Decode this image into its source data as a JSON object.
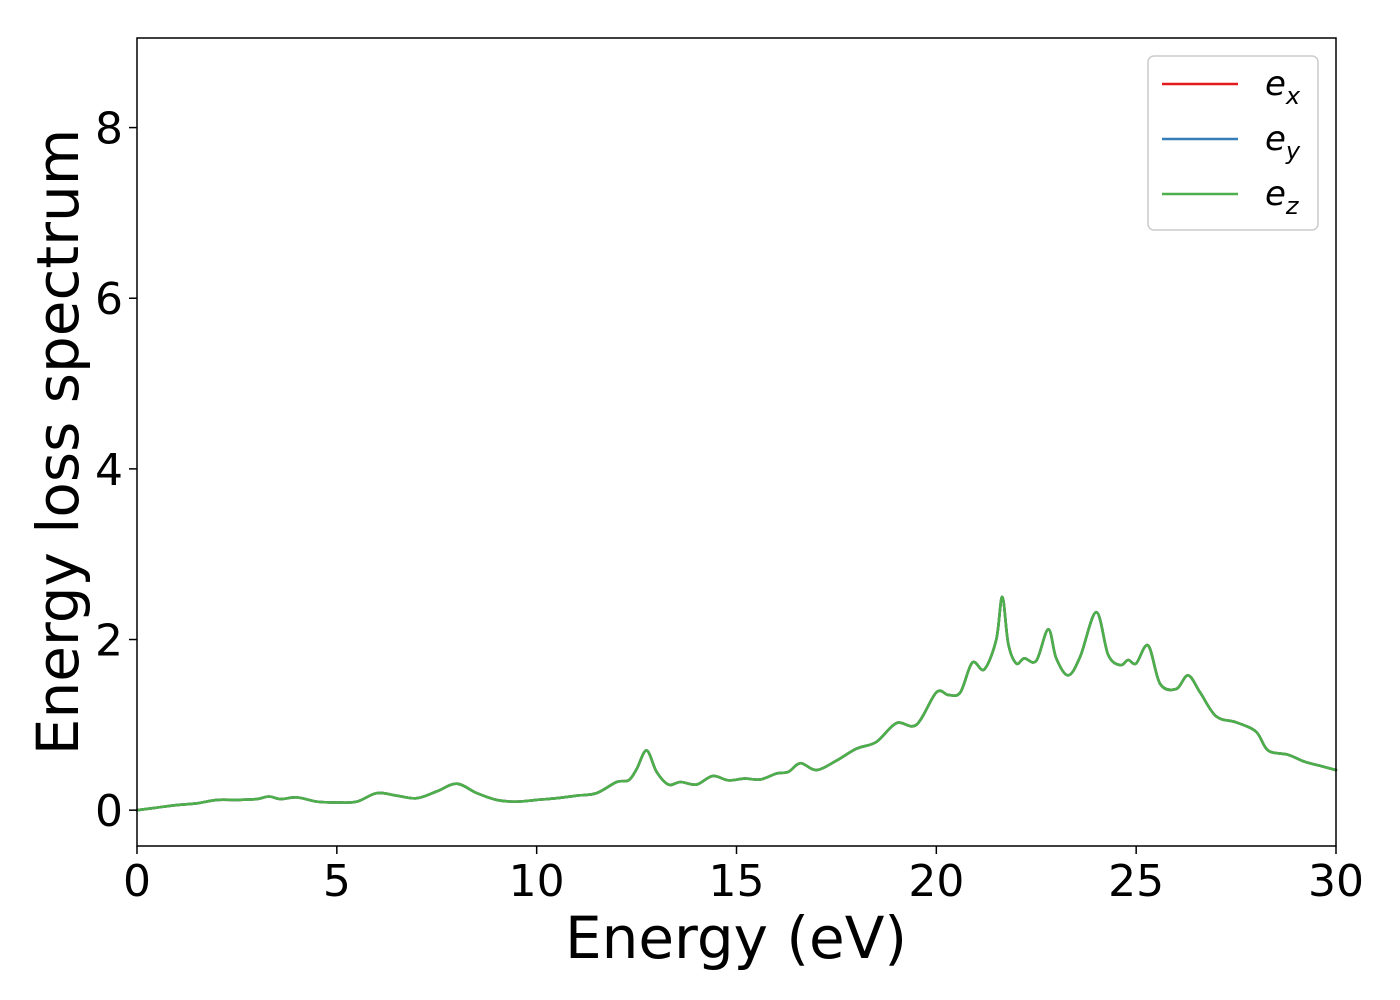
{
  "chart_data": {
    "type": "line",
    "xlabel": "Energy (eV)",
    "ylabel": "Energy loss spectrum",
    "xlim": [
      0,
      30
    ],
    "ylim": [
      -0.42,
      9.05
    ],
    "x_ticks": [
      "0",
      "5",
      "10",
      "15",
      "20",
      "25",
      "30"
    ],
    "y_ticks": [
      "0",
      "2",
      "4",
      "6",
      "8"
    ],
    "grid": false,
    "legend_position": "top-right",
    "x": [
      0,
      0.5,
      1.0,
      1.5,
      2.0,
      2.5,
      3.0,
      3.3,
      3.6,
      4.0,
      4.5,
      5.0,
      5.5,
      6.0,
      6.5,
      7.0,
      7.5,
      8.0,
      8.5,
      9.0,
      9.5,
      10.0,
      10.5,
      11.0,
      11.5,
      12.0,
      12.3,
      12.5,
      12.75,
      13.0,
      13.3,
      13.6,
      14.0,
      14.4,
      14.8,
      15.2,
      15.6,
      16.0,
      16.3,
      16.6,
      17.0,
      17.5,
      18.0,
      18.5,
      19.0,
      19.5,
      20.0,
      20.3,
      20.6,
      20.9,
      21.2,
      21.5,
      21.65,
      21.8,
      22.0,
      22.2,
      22.5,
      22.8,
      23.0,
      23.3,
      23.6,
      24.0,
      24.3,
      24.6,
      24.8,
      25.0,
      25.3,
      25.6,
      26.0,
      26.3,
      26.6,
      27.0,
      27.5,
      28.0,
      28.3,
      28.8,
      29.2,
      29.6,
      30.0
    ],
    "series": [
      {
        "name": "x",
        "label_main": "e",
        "label_sub": "x",
        "color": "#e41a1c",
        "values": [
          0.0,
          0.03,
          0.06,
          0.08,
          0.12,
          0.12,
          0.13,
          0.16,
          0.13,
          0.15,
          0.1,
          0.09,
          0.1,
          0.2,
          0.17,
          0.14,
          0.22,
          0.31,
          0.2,
          0.12,
          0.1,
          0.12,
          0.14,
          0.17,
          0.2,
          0.33,
          0.35,
          0.48,
          0.7,
          0.45,
          0.3,
          0.33,
          0.3,
          0.4,
          0.35,
          0.37,
          0.36,
          0.43,
          0.45,
          0.55,
          0.47,
          0.58,
          0.72,
          0.8,
          1.02,
          1.0,
          1.38,
          1.35,
          1.38,
          1.73,
          1.65,
          2.0,
          2.5,
          1.95,
          1.72,
          1.78,
          1.75,
          2.12,
          1.78,
          1.58,
          1.8,
          2.32,
          1.82,
          1.7,
          1.76,
          1.72,
          1.93,
          1.48,
          1.42,
          1.58,
          1.38,
          1.1,
          1.03,
          0.92,
          0.7,
          0.65,
          0.57,
          0.52,
          0.47
        ]
      },
      {
        "name": "y",
        "label_main": "e",
        "label_sub": "y",
        "color": "#377eb8",
        "values": [
          0.0,
          0.03,
          0.06,
          0.08,
          0.12,
          0.12,
          0.13,
          0.16,
          0.13,
          0.15,
          0.1,
          0.09,
          0.1,
          0.2,
          0.17,
          0.14,
          0.22,
          0.31,
          0.2,
          0.12,
          0.1,
          0.12,
          0.14,
          0.17,
          0.2,
          0.33,
          0.35,
          0.48,
          0.7,
          0.45,
          0.3,
          0.33,
          0.3,
          0.4,
          0.35,
          0.37,
          0.36,
          0.43,
          0.45,
          0.55,
          0.47,
          0.58,
          0.72,
          0.8,
          1.02,
          1.0,
          1.38,
          1.35,
          1.38,
          1.73,
          1.65,
          2.0,
          2.5,
          1.95,
          1.72,
          1.78,
          1.75,
          2.12,
          1.78,
          1.58,
          1.8,
          2.32,
          1.82,
          1.7,
          1.76,
          1.72,
          1.93,
          1.48,
          1.42,
          1.58,
          1.38,
          1.1,
          1.03,
          0.92,
          0.7,
          0.65,
          0.57,
          0.52,
          0.47
        ]
      },
      {
        "name": "z",
        "label_main": "e",
        "label_sub": "z",
        "color": "#4daf4a",
        "values": [
          0.0,
          0.03,
          0.06,
          0.08,
          0.12,
          0.12,
          0.13,
          0.16,
          0.13,
          0.15,
          0.1,
          0.09,
          0.1,
          0.2,
          0.17,
          0.14,
          0.22,
          0.31,
          0.2,
          0.12,
          0.1,
          0.12,
          0.14,
          0.17,
          0.2,
          0.33,
          0.35,
          0.48,
          0.7,
          0.45,
          0.3,
          0.33,
          0.3,
          0.4,
          0.35,
          0.37,
          0.36,
          0.43,
          0.45,
          0.55,
          0.47,
          0.58,
          0.72,
          0.8,
          1.02,
          1.0,
          1.38,
          1.35,
          1.38,
          1.73,
          1.65,
          2.0,
          2.5,
          1.95,
          1.72,
          1.78,
          1.75,
          2.12,
          1.78,
          1.58,
          1.8,
          2.32,
          1.82,
          1.7,
          1.76,
          1.72,
          1.93,
          1.48,
          1.42,
          1.58,
          1.38,
          1.1,
          1.03,
          0.92,
          0.7,
          0.65,
          0.57,
          0.52,
          0.47
        ]
      }
    ]
  }
}
